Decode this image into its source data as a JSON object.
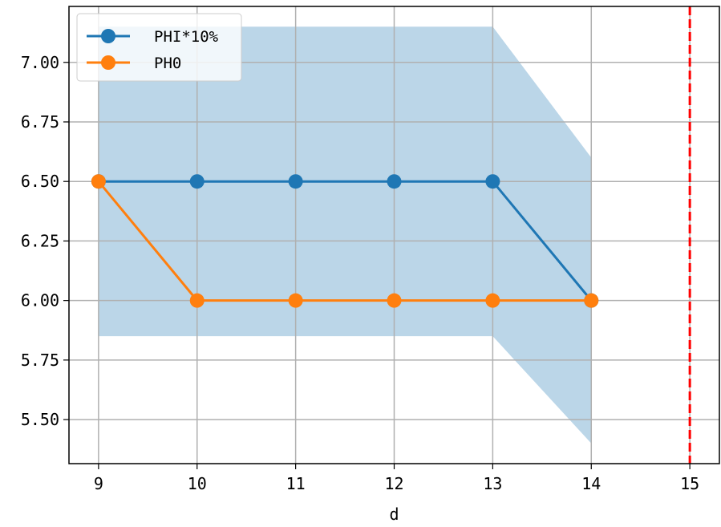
{
  "chart_data": {
    "type": "line",
    "title": "",
    "xlabel": "d",
    "ylabel": "",
    "xlim": [
      8.7,
      15.3
    ],
    "ylim": [
      5.315,
      7.235
    ],
    "x_ticks": [
      "9",
      "10",
      "11",
      "12",
      "13",
      "14",
      "15"
    ],
    "y_ticks": [
      "5.50",
      "5.75",
      "6.00",
      "6.25",
      "6.50",
      "6.75",
      "7.00"
    ],
    "grid": true,
    "legend_position": "top-left",
    "series": [
      {
        "name": "PHI*10%",
        "color": "#1f77b4",
        "x": [
          9,
          10,
          11,
          12,
          13,
          14
        ],
        "y": [
          6.5,
          6.5,
          6.5,
          6.5,
          6.5,
          6.0
        ]
      },
      {
        "name": "PH0",
        "color": "#ff7f0e",
        "x": [
          9,
          10,
          11,
          12,
          13,
          14
        ],
        "y": [
          6.5,
          6.0,
          6.0,
          6.0,
          6.0,
          6.0
        ]
      }
    ],
    "band": {
      "color": "#1f77b4",
      "opacity": 0.3,
      "x": [
        9,
        10,
        11,
        12,
        13,
        14
      ],
      "lower": [
        5.85,
        5.85,
        5.85,
        5.85,
        5.85,
        5.4
      ],
      "upper": [
        7.15,
        7.15,
        7.15,
        7.15,
        7.15,
        6.6
      ]
    },
    "vline": {
      "x": 15,
      "color": "#ff0000",
      "style": "dashed"
    }
  }
}
